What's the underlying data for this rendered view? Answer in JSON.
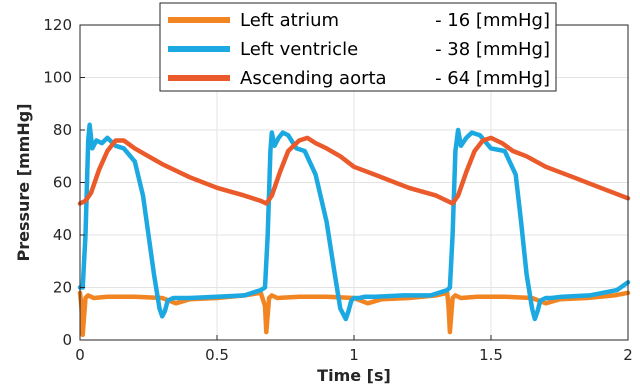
{
  "chart_data": {
    "type": "line",
    "title": "",
    "xlabel": "Time [s]",
    "ylabel": "Pressure [mmHg]",
    "xlim": [
      0,
      2
    ],
    "ylim": [
      0,
      120
    ],
    "xticks": [
      0,
      0.5,
      1,
      1.5,
      2
    ],
    "xtick_labels": [
      "0",
      "0.5",
      "1",
      "1.5",
      "2"
    ],
    "yticks": [
      0,
      20,
      40,
      60,
      80,
      100,
      120
    ],
    "ytick_labels": [
      "0",
      "20",
      "40",
      "60",
      "80",
      "100",
      "120"
    ],
    "grid": true,
    "legend_position": "top",
    "series": [
      {
        "name": "Left atrium",
        "legend_value": "- 16 [mmHg]",
        "color": "#F28522",
        "x": [
          0,
          0.005,
          0.01,
          0.02,
          0.03,
          0.05,
          0.1,
          0.2,
          0.3,
          0.35,
          0.4,
          0.5,
          0.6,
          0.66,
          0.675,
          0.68,
          0.69,
          0.7,
          0.72,
          0.8,
          0.9,
          1.0,
          1.05,
          1.1,
          1.2,
          1.3,
          1.34,
          1.345,
          1.35,
          1.36,
          1.37,
          1.39,
          1.45,
          1.55,
          1.65,
          1.7,
          1.75,
          1.85,
          1.95,
          2.0
        ],
        "y": [
          18,
          13,
          2,
          16,
          17,
          16,
          16.5,
          16.5,
          16,
          14,
          15.5,
          16,
          17,
          18,
          13,
          3,
          16,
          17,
          16,
          16.5,
          16.5,
          16,
          14,
          15.5,
          16,
          17,
          18,
          13,
          3,
          16,
          17,
          16,
          16.5,
          16.5,
          16,
          14,
          15.5,
          16,
          17,
          18
        ]
      },
      {
        "name": "Left ventricle",
        "legend_value": "- 38 [mmHg]",
        "color": "#1CA9E1",
        "x": [
          0,
          0.01,
          0.02,
          0.03,
          0.035,
          0.045,
          0.06,
          0.08,
          0.1,
          0.13,
          0.16,
          0.2,
          0.23,
          0.25,
          0.27,
          0.29,
          0.3,
          0.31,
          0.32,
          0.34,
          0.36,
          0.4,
          0.5,
          0.6,
          0.66,
          0.675,
          0.685,
          0.695,
          0.7,
          0.71,
          0.725,
          0.74,
          0.76,
          0.79,
          0.82,
          0.86,
          0.9,
          0.93,
          0.95,
          0.97,
          0.98,
          0.99,
          1.0,
          1.02,
          1.04,
          1.08,
          1.18,
          1.28,
          1.34,
          1.35,
          1.36,
          1.37,
          1.38,
          1.39,
          1.41,
          1.43,
          1.46,
          1.5,
          1.55,
          1.59,
          1.61,
          1.63,
          1.65,
          1.66,
          1.67,
          1.68,
          1.7,
          1.72,
          1.76,
          1.86,
          1.96,
          2.0
        ],
        "y": [
          20,
          20,
          40,
          76,
          82,
          73,
          76,
          75,
          77,
          74,
          73,
          68,
          55,
          40,
          25,
          12,
          9,
          11,
          15,
          16,
          16,
          16,
          16.5,
          17,
          19,
          20,
          40,
          72,
          79,
          74,
          77,
          79,
          78,
          73,
          72,
          63,
          45,
          25,
          12,
          8,
          11,
          15,
          16,
          16,
          16.5,
          16.5,
          17,
          17,
          19,
          20,
          40,
          72,
          80,
          74,
          77,
          79,
          78,
          73,
          72,
          63,
          45,
          25,
          12,
          8,
          11,
          15,
          16,
          16,
          16.5,
          17,
          19,
          22
        ]
      },
      {
        "name": "Ascending aorta",
        "legend_value": "- 64 [mmHg]",
        "color": "#EA5A2A",
        "x": [
          0,
          0.02,
          0.04,
          0.07,
          0.1,
          0.13,
          0.16,
          0.2,
          0.25,
          0.3,
          0.4,
          0.5,
          0.6,
          0.66,
          0.68,
          0.7,
          0.73,
          0.76,
          0.8,
          0.83,
          0.86,
          0.9,
          0.95,
          1.0,
          1.1,
          1.2,
          1.3,
          1.34,
          1.36,
          1.38,
          1.41,
          1.44,
          1.47,
          1.5,
          1.54,
          1.58,
          1.63,
          1.7,
          1.8,
          1.9,
          2.0
        ],
        "y": [
          52,
          53,
          56,
          65,
          72,
          76,
          76,
          73,
          70,
          67,
          62,
          58,
          55,
          53,
          52,
          55,
          64,
          72,
          76,
          77,
          75,
          73,
          70,
          66,
          62,
          58,
          55,
          53,
          52,
          55,
          64,
          72,
          76,
          77,
          75,
          72,
          70,
          66,
          62,
          58,
          54
        ]
      }
    ]
  }
}
